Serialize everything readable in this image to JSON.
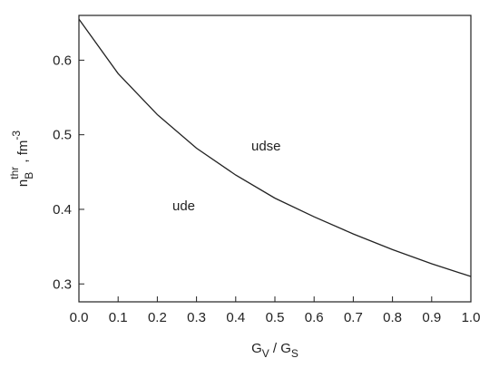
{
  "chart_data": {
    "type": "line",
    "xlabel": [
      "G",
      "V",
      " / G",
      "S"
    ],
    "ylabel": [
      "n",
      "B",
      "thr",
      " ,  fm",
      "-3"
    ],
    "annotations": [
      "udse",
      "ude"
    ],
    "x": [
      0,
      0.1,
      0.2,
      0.3,
      0.4,
      0.5,
      0.6,
      0.7,
      0.8,
      0.9,
      1
    ],
    "values": [
      0.655,
      0.582,
      0.527,
      0.482,
      0.446,
      0.415,
      0.39,
      0.367,
      0.346,
      0.327,
      0.31
    ],
    "color": "#222222",
    "xlim": [
      0,
      1
    ],
    "xticks": [
      {
        "value": 0,
        "label": "0.0"
      },
      0.1,
      0.2,
      0.3,
      0.4,
      0.5,
      0.6,
      0.7,
      0.8,
      0.9,
      {
        "value": 1,
        "label": "1.0"
      }
    ],
    "ylim": [
      0.276,
      0.66
    ],
    "yticks": [
      0.3,
      0.4,
      0.5,
      0.6
    ]
  }
}
